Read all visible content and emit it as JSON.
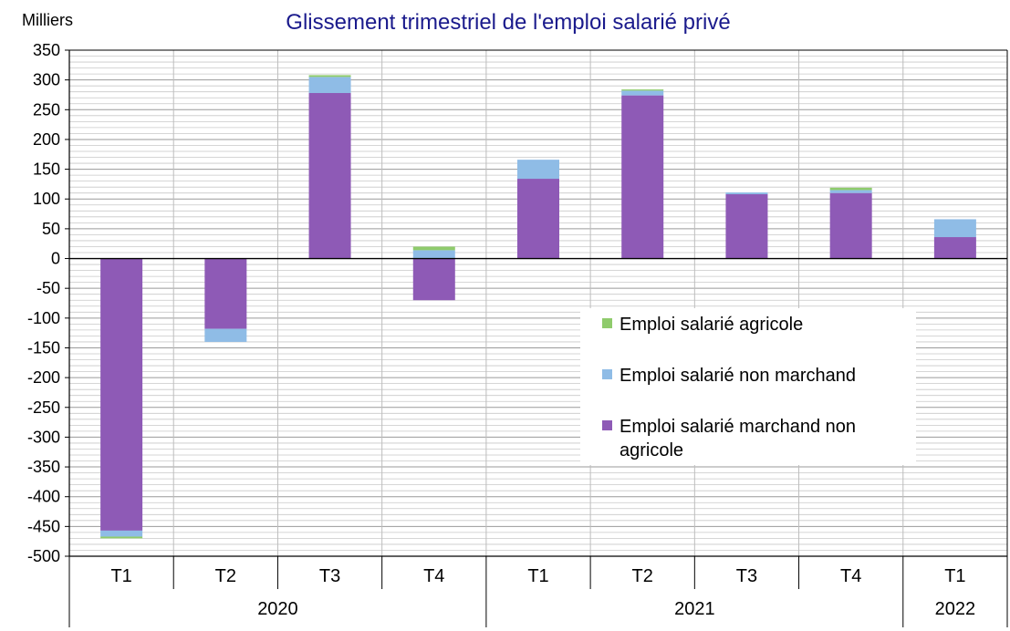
{
  "chart_data": {
    "type": "bar",
    "stacked": true,
    "title": "Glissement trimestriel de l'emploi salarié privé",
    "unit_label": "Milliers",
    "xlabel": "",
    "ylabel": "",
    "ylim": [
      -500,
      350
    ],
    "yticks": [
      -500,
      -450,
      -400,
      -350,
      -300,
      -250,
      -200,
      -150,
      -100,
      -50,
      0,
      50,
      100,
      150,
      200,
      250,
      300,
      350
    ],
    "grid": true,
    "legend_position": "right",
    "categories": [
      "T1",
      "T2",
      "T3",
      "T4",
      "T1",
      "T2",
      "T3",
      "T4",
      "T1"
    ],
    "groups": [
      {
        "label": "2020",
        "count": 4
      },
      {
        "label": "2021",
        "count": 4
      },
      {
        "label": "2022",
        "count": 1
      }
    ],
    "series": [
      {
        "name": "Emploi salarié marchand non agricole",
        "color": "#8e5ab6",
        "values": [
          -457,
          -118,
          278,
          -70,
          134,
          274,
          108,
          110,
          36
        ]
      },
      {
        "name": "Emploi salarié non marchand",
        "color": "#8fbce6",
        "values": [
          -10,
          -22,
          27,
          14,
          32,
          8,
          3,
          5,
          30
        ]
      },
      {
        "name": "Emploi salarié agricole",
        "color": "#8fcb6c",
        "values": [
          -3,
          0,
          3,
          6,
          0,
          2,
          0,
          4,
          0
        ]
      }
    ],
    "legend_order": [
      2,
      1,
      0
    ]
  }
}
